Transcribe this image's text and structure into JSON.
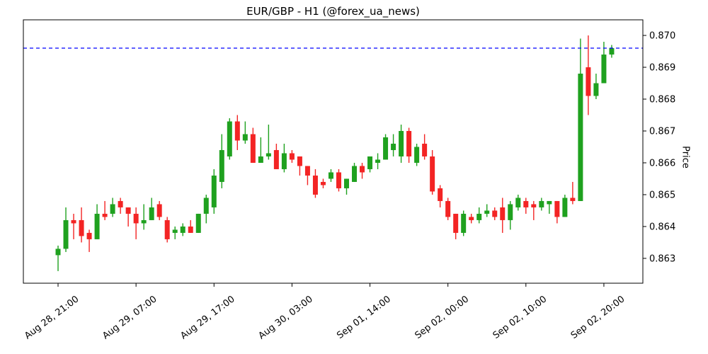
{
  "title": "EUR/GBP - H1 (@forex_ua_news)",
  "y_axis_label": "Price",
  "colors": {
    "up": "#1fa11f",
    "down": "#f32424",
    "reference_line": "#0000ff",
    "border": "#000000",
    "text": "#000000",
    "background": "#ffffff"
  },
  "chart_data": {
    "type": "candlestick",
    "title": "EUR/GBP - H1 (@forex_ua_news)",
    "ylabel": "Price",
    "timeframe": "H1",
    "symbol": "EUR/GBP",
    "ylim": [
      0.86222,
      0.87049
    ],
    "xlim": [
      -4.45,
      75.0
    ],
    "y_ticks": [
      0.863,
      0.864,
      0.865,
      0.866,
      0.867,
      0.868,
      0.869,
      0.87
    ],
    "x_ticks": [
      {
        "index": 0,
        "label": "Aug 28, 21:00"
      },
      {
        "index": 10,
        "label": "Aug 29, 07:00"
      },
      {
        "index": 20,
        "label": "Aug 29, 17:00"
      },
      {
        "index": 30,
        "label": "Aug 30, 03:00"
      },
      {
        "index": 40,
        "label": "Sep 01, 14:00"
      },
      {
        "index": 50,
        "label": "Sep 02, 00:00"
      },
      {
        "index": 60,
        "label": "Sep 02, 10:00"
      },
      {
        "index": 70,
        "label": "Sep 02, 20:00"
      }
    ],
    "reference_line_price": 0.8696,
    "candles_ohlc": [
      [
        0.8631,
        0.8634,
        0.8626,
        0.8633
      ],
      [
        0.8633,
        0.8646,
        0.8632,
        0.8642
      ],
      [
        0.8642,
        0.8644,
        0.8636,
        0.8641
      ],
      [
        0.8642,
        0.8646,
        0.8635,
        0.8637
      ],
      [
        0.8638,
        0.8639,
        0.8632,
        0.8636
      ],
      [
        0.8636,
        0.8647,
        0.8636,
        0.8644
      ],
      [
        0.8644,
        0.8648,
        0.8642,
        0.8643
      ],
      [
        0.8644,
        0.8649,
        0.8643,
        0.8647
      ],
      [
        0.8648,
        0.8649,
        0.8644,
        0.8646
      ],
      [
        0.8646,
        0.8646,
        0.864,
        0.8644
      ],
      [
        0.8644,
        0.8646,
        0.8636,
        0.8641
      ],
      [
        0.8641,
        0.8647,
        0.8639,
        0.8642
      ],
      [
        0.8642,
        0.8649,
        0.8642,
        0.8646
      ],
      [
        0.8647,
        0.8648,
        0.8642,
        0.8643
      ],
      [
        0.8642,
        0.8643,
        0.8635,
        0.8636
      ],
      [
        0.8638,
        0.864,
        0.8636,
        0.8639
      ],
      [
        0.8638,
        0.8641,
        0.8637,
        0.864
      ],
      [
        0.864,
        0.8642,
        0.8638,
        0.8638
      ],
      [
        0.8638,
        0.8644,
        0.8638,
        0.8644
      ],
      [
        0.8644,
        0.865,
        0.8641,
        0.8649
      ],
      [
        0.8646,
        0.8658,
        0.8644,
        0.8656
      ],
      [
        0.8654,
        0.8669,
        0.8652,
        0.8664
      ],
      [
        0.8662,
        0.8674,
        0.8661,
        0.8673
      ],
      [
        0.8673,
        0.8675,
        0.8664,
        0.8667
      ],
      [
        0.8667,
        0.8673,
        0.8666,
        0.8669
      ],
      [
        0.8669,
        0.8671,
        0.866,
        0.866
      ],
      [
        0.866,
        0.8668,
        0.866,
        0.8662
      ],
      [
        0.8662,
        0.8672,
        0.8661,
        0.8663
      ],
      [
        0.8664,
        0.8666,
        0.8658,
        0.8658
      ],
      [
        0.8658,
        0.8666,
        0.8657,
        0.8663
      ],
      [
        0.8663,
        0.8664,
        0.866,
        0.8661
      ],
      [
        0.8662,
        0.8662,
        0.8656,
        0.8659
      ],
      [
        0.8659,
        0.8659,
        0.8653,
        0.8656
      ],
      [
        0.8656,
        0.8658,
        0.8649,
        0.865
      ],
      [
        0.8654,
        0.8655,
        0.8652,
        0.8653
      ],
      [
        0.8655,
        0.8658,
        0.8654,
        0.8657
      ],
      [
        0.8657,
        0.8658,
        0.8651,
        0.8652
      ],
      [
        0.8652,
        0.8655,
        0.865,
        0.8655
      ],
      [
        0.8654,
        0.866,
        0.8654,
        0.8659
      ],
      [
        0.8659,
        0.866,
        0.8655,
        0.8657
      ],
      [
        0.8658,
        0.8662,
        0.8657,
        0.8662
      ],
      [
        0.866,
        0.8663,
        0.8658,
        0.8661
      ],
      [
        0.8661,
        0.8669,
        0.8661,
        0.8668
      ],
      [
        0.8664,
        0.8669,
        0.8662,
        0.8666
      ],
      [
        0.8662,
        0.8672,
        0.866,
        0.867
      ],
      [
        0.867,
        0.8671,
        0.866,
        0.8662
      ],
      [
        0.866,
        0.8666,
        0.8659,
        0.8665
      ],
      [
        0.8666,
        0.8669,
        0.8661,
        0.8662
      ],
      [
        0.8662,
        0.8664,
        0.865,
        0.8651
      ],
      [
        0.8652,
        0.8653,
        0.8646,
        0.8648
      ],
      [
        0.8648,
        0.8649,
        0.8642,
        0.8643
      ],
      [
        0.8644,
        0.8644,
        0.8636,
        0.8638
      ],
      [
        0.8638,
        0.8645,
        0.8637,
        0.8644
      ],
      [
        0.8643,
        0.8644,
        0.8641,
        0.8642
      ],
      [
        0.8642,
        0.8646,
        0.8641,
        0.8644
      ],
      [
        0.8644,
        0.8647,
        0.8643,
        0.8645
      ],
      [
        0.8645,
        0.8646,
        0.8642,
        0.8643
      ],
      [
        0.8646,
        0.8649,
        0.8638,
        0.8642
      ],
      [
        0.8642,
        0.8648,
        0.8639,
        0.8647
      ],
      [
        0.8646,
        0.865,
        0.8645,
        0.8649
      ],
      [
        0.8648,
        0.8649,
        0.8644,
        0.8646
      ],
      [
        0.8647,
        0.8648,
        0.8642,
        0.8646
      ],
      [
        0.8646,
        0.8649,
        0.8645,
        0.8648
      ],
      [
        0.8647,
        0.8648,
        0.8644,
        0.8648
      ],
      [
        0.8648,
        0.8648,
        0.8641,
        0.8643
      ],
      [
        0.8643,
        0.865,
        0.8643,
        0.8649
      ],
      [
        0.8649,
        0.8654,
        0.8647,
        0.8648
      ],
      [
        0.8648,
        0.8699,
        0.8648,
        0.8688
      ],
      [
        0.869,
        0.87,
        0.8675,
        0.8681
      ],
      [
        0.8681,
        0.8688,
        0.868,
        0.8685
      ],
      [
        0.8685,
        0.8698,
        0.8685,
        0.8694
      ],
      [
        0.8694,
        0.8697,
        0.8693,
        0.8696
      ]
    ]
  }
}
